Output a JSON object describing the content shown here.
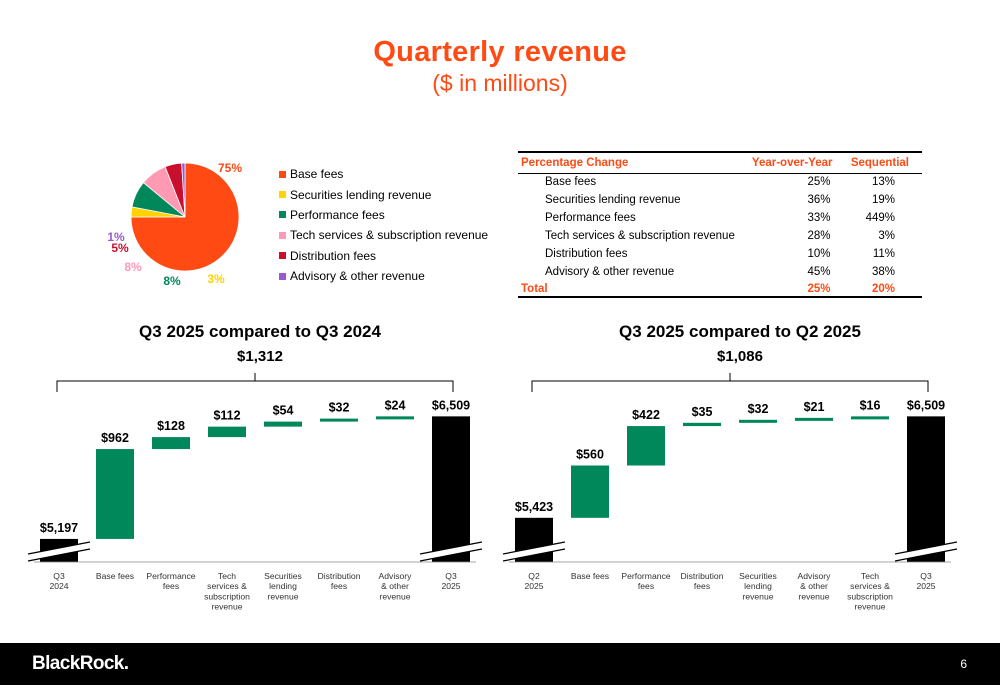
{
  "header": {
    "title": "Quarterly revenue",
    "subtitle": "($ in millions)"
  },
  "colors": {
    "brand": "#ff4a14",
    "base_fees": "#ff4a14",
    "securities_lending": "#ffd200",
    "performance_fees": "#00875a",
    "tech_services": "#ff99b4",
    "distribution_fees": "#c8102e",
    "advisory": "#9b59d0",
    "bar_total": "#000000",
    "bar_delta": "#00875a"
  },
  "chart_data": [
    {
      "type": "pie",
      "slices": [
        {
          "name": "Base fees",
          "value": 75,
          "label": "75%",
          "color": "#ff4a14"
        },
        {
          "name": "Securities lending revenue",
          "value": 3,
          "label": "3%",
          "color": "#ffd200"
        },
        {
          "name": "Performance fees",
          "value": 8,
          "label": "8%",
          "color": "#00875a"
        },
        {
          "name": "Tech services & subscription revenue",
          "value": 8,
          "label": "8%",
          "color": "#ff99b4"
        },
        {
          "name": "Distribution fees",
          "value": 5,
          "label": "5%",
          "color": "#c8102e"
        },
        {
          "name": "Advisory & other revenue",
          "value": 1,
          "label": "1%",
          "color": "#9b59d0"
        }
      ]
    },
    {
      "type": "table",
      "headers": [
        "Percentage Change",
        "Year-over-Year",
        "Sequential"
      ],
      "rows": [
        [
          "Base fees",
          "25%",
          "13%"
        ],
        [
          "Securities lending revenue",
          "36%",
          "19%"
        ],
        [
          "Performance fees",
          "33%",
          "449%"
        ],
        [
          "Tech services & subscription revenue",
          "28%",
          "3%"
        ],
        [
          "Distribution fees",
          "10%",
          "11%"
        ],
        [
          "Advisory & other revenue",
          "45%",
          "38%"
        ]
      ],
      "total": [
        "Total",
        "25%",
        "20%"
      ]
    },
    {
      "type": "bar",
      "subtype": "waterfall",
      "title": "Q3 2025 compared to Q3 2024",
      "total_change": "$1,312",
      "categories": [
        "Q3\n2024",
        "Base fees",
        "Performance\nfees",
        "Tech\nservices &\nsubscription\nrevenue",
        "Securities\nlending\nrevenue",
        "Distribution\nfees",
        "Advisory\n& other\nrevenue",
        "Q3\n2025"
      ],
      "values": [
        5197,
        962,
        128,
        112,
        54,
        32,
        24,
        6509
      ],
      "labels": [
        "$5,197",
        "$962",
        "$128",
        "$112",
        "$54",
        "$32",
        "$24",
        "$6,509"
      ],
      "kinds": [
        "total",
        "delta",
        "delta",
        "delta",
        "delta",
        "delta",
        "delta",
        "total"
      ],
      "axis_break": true
    },
    {
      "type": "bar",
      "subtype": "waterfall",
      "title": "Q3 2025 compared to Q2 2025",
      "total_change": "$1,086",
      "categories": [
        "Q2\n2025",
        "Base fees",
        "Performance\nfees",
        "Distribution\nfees",
        "Securities\nlending\nrevenue",
        "Advisory\n& other\nrevenue",
        "Tech\nservices &\nsubscription\nrevenue",
        "Q3\n2025"
      ],
      "values": [
        5423,
        560,
        422,
        35,
        32,
        21,
        16,
        6509
      ],
      "labels": [
        "$5,423",
        "$560",
        "$422",
        "$35",
        "$32",
        "$21",
        "$16",
        "$6,509"
      ],
      "kinds": [
        "total",
        "delta",
        "delta",
        "delta",
        "delta",
        "delta",
        "delta",
        "total"
      ],
      "axis_break": true
    }
  ],
  "footer": {
    "logo": "BlackRock.",
    "page_number": "6"
  }
}
